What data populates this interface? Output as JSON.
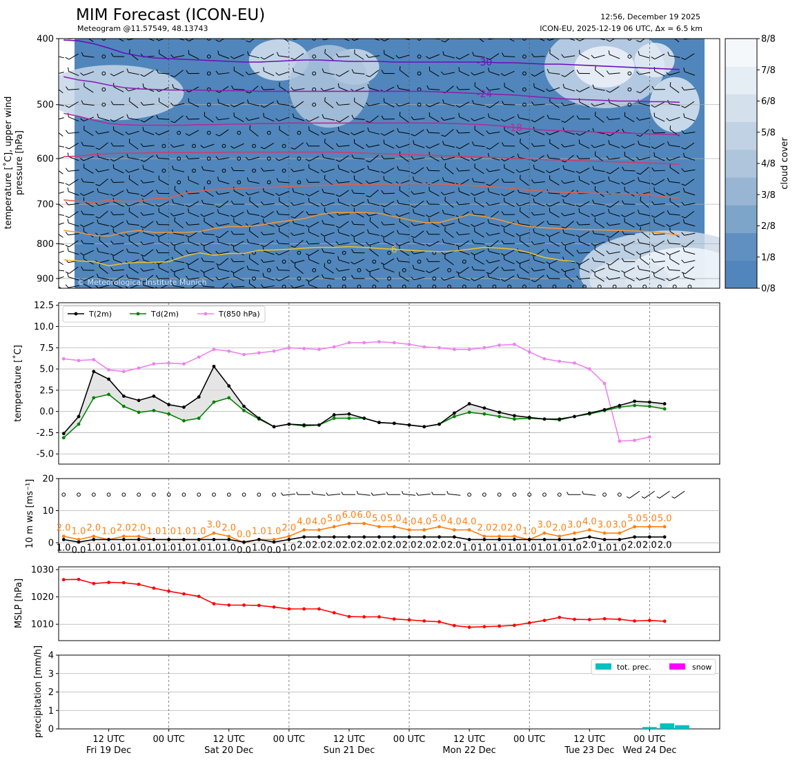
{
  "header": {
    "title": "MIM Forecast (ICON-EU)",
    "subtitle": "Meteogram @11.57549, 48.13743",
    "timestamp": "12:56, December 19 2025",
    "run_info": "ICON-EU, 2025-12-19 06 UTC, Δx = 6.5 km"
  },
  "x_axis": {
    "ticks": [
      {
        "l1": "12 UTC",
        "l2": "Fri 19 Dec"
      },
      {
        "l1": "00 UTC",
        "l2": ""
      },
      {
        "l1": "12 UTC",
        "l2": "Sat 20 Dec"
      },
      {
        "l1": "00 UTC",
        "l2": ""
      },
      {
        "l1": "12 UTC",
        "l2": "Sun 21 Dec"
      },
      {
        "l1": "00 UTC",
        "l2": ""
      },
      {
        "l1": "12 UTC",
        "l2": "Mon 22 Dec"
      },
      {
        "l1": "00 UTC",
        "l2": ""
      },
      {
        "l1": "12 UTC",
        "l2": "Tue 23 Dec"
      },
      {
        "l1": "00 UTC",
        "l2": "Wed 24 Dec"
      }
    ],
    "tick_hours": [
      12,
      24,
      36,
      48,
      60,
      72,
      84,
      96,
      108,
      120
    ],
    "midnight_hours": [
      24,
      48,
      72,
      96,
      120
    ],
    "range_hours": [
      2,
      134
    ],
    "sample_hours": [
      3,
      6,
      9,
      12,
      15,
      18,
      21,
      24,
      27,
      30,
      33,
      36,
      39,
      42,
      45,
      48,
      51,
      54,
      57,
      60,
      63,
      66,
      69,
      72,
      75,
      78,
      81,
      84,
      87,
      90,
      93,
      96,
      99,
      102,
      105,
      108,
      111,
      114,
      117,
      120,
      123,
      126
    ]
  },
  "chart_data": [
    {
      "type": "heatmap",
      "panel": "upper-air",
      "ylabel": "temperature [˚C], upper wind\npressure [hPa]",
      "yticks": [
        400,
        500,
        600,
        700,
        800,
        900
      ],
      "ylim": [
        930,
        400
      ],
      "y_scale": "log-pressure",
      "cbar_label": "cloud cover",
      "cbar_ticks": [
        "0/8",
        "1/8",
        "2/8",
        "3/8",
        "4/8",
        "5/8",
        "6/8",
        "7/8",
        "8/8"
      ],
      "cbar_colors": [
        "#5086bb",
        "#608fc1",
        "#7da4c9",
        "#98b5d3",
        "#aec5dc",
        "#c0d2e4",
        "#d4e0ec",
        "#e5edf5",
        "#f4f8fb"
      ],
      "watermark": "© Meteorological Institute Munich",
      "isotherms": [
        {
          "label": "-30",
          "color": "#6a0dbd",
          "label_hour": 87,
          "pressure": [
            402,
            403,
            407,
            413,
            420,
            424,
            427,
            428,
            429,
            430,
            431,
            432,
            433,
            433,
            432,
            431,
            430,
            430,
            431,
            432,
            432,
            432,
            433,
            433,
            433,
            433,
            433,
            433,
            433,
            434,
            434,
            435,
            436,
            436,
            437,
            438,
            439,
            440,
            441,
            442,
            443,
            444
          ]
        },
        {
          "label": "-24",
          "color": "#8e1fb0",
          "label_hour": 87,
          "pressure": [
            455,
            460,
            463,
            468,
            472,
            474,
            475,
            476,
            476,
            476,
            477,
            477,
            477,
            478,
            478,
            478,
            478,
            478,
            478,
            478,
            478,
            478,
            478,
            478,
            478,
            479,
            480,
            481,
            482,
            483,
            484,
            486,
            488,
            490,
            491,
            492,
            493,
            494,
            494,
            495,
            495,
            496
          ]
        },
        {
          "label": "-18",
          "color": "#b52a9a",
          "label_hour": 93,
          "pressure": [
            515,
            520,
            527,
            533,
            535,
            536,
            536,
            536,
            536,
            535,
            535,
            534,
            534,
            533,
            533,
            532,
            532,
            532,
            532,
            532,
            532,
            532,
            532,
            532,
            532,
            532,
            533,
            534,
            535,
            537,
            540,
            543,
            545,
            546,
            547,
            548,
            549,
            550,
            551,
            552,
            553,
            554
          ]
        },
        {
          "label": "-12",
          "color": "#cf3c6e",
          "label_hour": 95,
          "pressure": [
            596,
            595,
            592,
            590,
            589,
            589,
            588,
            588,
            588,
            588,
            588,
            587,
            587,
            587,
            587,
            587,
            587,
            587,
            587,
            588,
            589,
            590,
            591,
            592,
            593,
            594,
            595,
            596,
            597,
            598,
            600,
            601,
            602,
            603,
            604,
            605,
            606,
            607,
            608,
            609,
            610,
            612
          ]
        },
        {
          "label": "-6",
          "color": "#e0604a",
          "label_hour": 71,
          "pressure": [
            690,
            693,
            696,
            690,
            694,
            693,
            687,
            686,
            675,
            670,
            666,
            665,
            663,
            662,
            661,
            659,
            658,
            657,
            656,
            655,
            655,
            654,
            654,
            653,
            653,
            654,
            655,
            657,
            659,
            661,
            664,
            668,
            670,
            672,
            673,
            674,
            675,
            676,
            676,
            678,
            683,
            686
          ]
        },
        {
          "label": "0",
          "color": "#f0963a",
          "label_hour": 25,
          "pressure": [
            765,
            770,
            778,
            780,
            770,
            765,
            770,
            770,
            770,
            768,
            760,
            755,
            755,
            752,
            745,
            740,
            735,
            725,
            720,
            720,
            720,
            722,
            730,
            738,
            745,
            745,
            735,
            725,
            730,
            738,
            748,
            755,
            758,
            760,
            762,
            763,
            764,
            765,
            766,
            768,
            772,
            778
          ]
        },
        {
          "label": "6",
          "color": "#e8c030",
          "label_hour": 69,
          "pressure": [
            845,
            848,
            850,
            862,
            855,
            852,
            852,
            850,
            835,
            825,
            832,
            827,
            827,
            818,
            817,
            815,
            812,
            810,
            810,
            808,
            810,
            813,
            815,
            818,
            820,
            822,
            820,
            815,
            810,
            812,
            815,
            825,
            838,
            845,
            850,
            null,
            null,
            null,
            null,
            null,
            null,
            null
          ]
        }
      ],
      "wind_barbs": "per level and time step"
    },
    {
      "type": "line",
      "panel": "temperature",
      "ylabel": "temperature [˚C]",
      "ylim": [
        -6.2,
        12.8
      ],
      "yticks": [
        -5.0,
        -2.5,
        0.0,
        2.5,
        5.0,
        7.5,
        10.0,
        12.5
      ],
      "legend_position": "top-left",
      "series": [
        {
          "name": "T(2m)",
          "color": "#000000",
          "values": [
            -2.6,
            -0.6,
            4.7,
            3.8,
            1.8,
            1.3,
            1.8,
            0.8,
            0.5,
            1.7,
            5.3,
            3.0,
            0.6,
            -0.8,
            -1.8,
            -1.5,
            -1.6,
            -1.6,
            -0.4,
            -0.3,
            -0.8,
            -1.3,
            -1.4,
            -1.6,
            -1.8,
            -1.5,
            -0.2,
            0.9,
            0.4,
            -0.1,
            -0.5,
            -0.7,
            -0.9,
            -0.9,
            -0.6,
            -0.2,
            0.2,
            0.7,
            1.2,
            1.1,
            0.9
          ]
        },
        {
          "name": "Td(2m)",
          "color": "#008000",
          "values": [
            -3.1,
            -1.5,
            1.6,
            2.0,
            0.6,
            -0.1,
            0.1,
            -0.3,
            -1.1,
            -0.8,
            1.1,
            1.6,
            0.1,
            -0.9,
            -1.8,
            -1.5,
            -1.7,
            -1.6,
            -0.8,
            -0.8,
            -0.8,
            -1.3,
            -1.4,
            -1.6,
            -1.8,
            -1.5,
            -0.6,
            -0.1,
            -0.3,
            -0.6,
            -0.9,
            -0.8,
            -0.9,
            -1.0,
            -0.6,
            -0.3,
            0.1,
            0.5,
            0.7,
            0.6,
            0.3
          ]
        },
        {
          "name": "T(850 hPa)",
          "color": "#ee82ee",
          "values": [
            6.2,
            6.0,
            6.1,
            4.9,
            4.7,
            5.1,
            5.6,
            5.7,
            5.6,
            6.4,
            7.3,
            7.1,
            6.7,
            6.9,
            7.1,
            7.5,
            7.4,
            7.3,
            7.6,
            8.1,
            8.1,
            8.2,
            8.1,
            7.9,
            7.6,
            7.5,
            7.3,
            7.3,
            7.5,
            7.8,
            7.9,
            7.0,
            6.2,
            5.9,
            5.7,
            5.0,
            3.3,
            -3.5,
            -3.4,
            -3.0
          ]
        }
      ]
    },
    {
      "type": "line",
      "panel": "wind",
      "ylabel": "10 m ws [ms⁻¹]",
      "ylim": [
        -3,
        20
      ],
      "yticks": [
        0,
        10,
        20
      ],
      "series": [
        {
          "name": "",
          "color": "#ff7f0e",
          "values": [
            2.0,
            1.0,
            2.0,
            1.0,
            2.0,
            2.0,
            1.0,
            1.0,
            1.0,
            1.0,
            3.0,
            2.0,
            0.0,
            1.0,
            1.0,
            2.0,
            4.0,
            4.0,
            5.0,
            6.0,
            6.0,
            5.0,
            5.0,
            4.0,
            4.0,
            5.0,
            4.0,
            4.0,
            2.0,
            2.0,
            2.0,
            1.0,
            3.0,
            2.0,
            3.0,
            4.0,
            3.0,
            3.0,
            5.0,
            5.0,
            5.0
          ]
        },
        {
          "name": "",
          "color": "#000000",
          "values": [
            1.0,
            0.0,
            1.0,
            1.0,
            1.0,
            1.0,
            1.0,
            1.0,
            1.0,
            1.0,
            1.0,
            1.0,
            0.0,
            1.0,
            0.0,
            1.0,
            2.0,
            2.0,
            2.0,
            2.0,
            2.0,
            2.0,
            2.0,
            2.0,
            2.0,
            2.0,
            2.0,
            1.0,
            1.0,
            1.0,
            1.0,
            1.0,
            1.0,
            1.0,
            1.0,
            2.0,
            1.0,
            1.0,
            2.0,
            2.0,
            2.0
          ]
        }
      ],
      "barb_row": "calm circles then barbs"
    },
    {
      "type": "line",
      "panel": "mslp",
      "ylabel": "MSLP [hPa]",
      "ylim": [
        1004,
        1031
      ],
      "yticks": [
        1010,
        1020,
        1030
      ],
      "series": [
        {
          "name": "",
          "color": "#ff0000",
          "values": [
            1026.3,
            1026.4,
            1024.9,
            1025.3,
            1025.2,
            1024.6,
            1023.2,
            1022.1,
            1021.1,
            1020.2,
            1017.5,
            1017.0,
            1017.0,
            1016.9,
            1016.3,
            1015.6,
            1015.6,
            1015.6,
            1014.2,
            1012.8,
            1012.7,
            1012.7,
            1011.9,
            1011.6,
            1011.2,
            1010.9,
            1009.5,
            1008.9,
            1009.1,
            1009.3,
            1009.6,
            1010.5,
            1011.4,
            1012.5,
            1011.8,
            1011.7,
            1012.0,
            1011.8,
            1011.2,
            1011.4,
            1011.1
          ]
        }
      ]
    },
    {
      "type": "bar",
      "panel": "precipitation",
      "ylabel": "precipitation [mm/h]",
      "ylim": [
        0,
        4
      ],
      "yticks": [
        0,
        1,
        2,
        3,
        4
      ],
      "legend_position": "top-right",
      "series": [
        {
          "name": "tot. prec.",
          "color": "#00c0c0",
          "hours": [
            120,
            123.5,
            126.5
          ],
          "values": [
            0.1,
            0.3,
            0.2
          ]
        },
        {
          "name": "snow",
          "color": "#ff00ff",
          "hours": [],
          "values": []
        }
      ]
    }
  ]
}
